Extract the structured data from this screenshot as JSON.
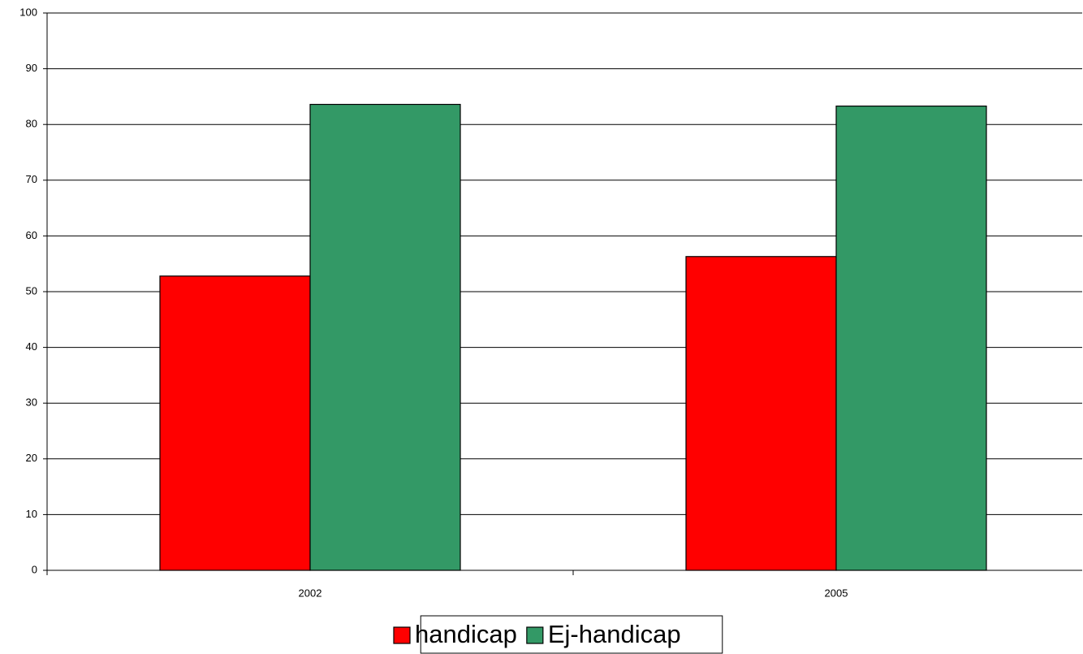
{
  "chart_data": {
    "type": "bar",
    "categories": [
      "2002",
      "2005"
    ],
    "series": [
      {
        "name": "handicap",
        "color": "#ff0000",
        "values": [
          52.8,
          56.3
        ]
      },
      {
        "name": "Ej-handicap",
        "color": "#339966",
        "values": [
          83.6,
          83.3
        ]
      }
    ],
    "ylim": [
      0,
      100
    ],
    "yticks": [
      0,
      10,
      20,
      30,
      40,
      50,
      60,
      70,
      80,
      90,
      100
    ],
    "grid": true,
    "legend": "bottom"
  }
}
